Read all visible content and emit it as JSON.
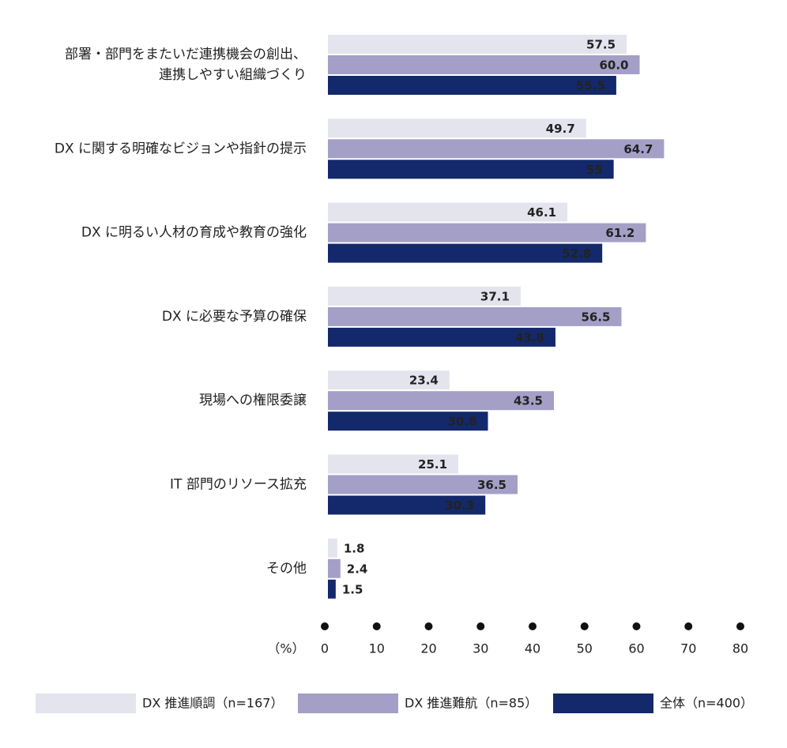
{
  "chart_data": {
    "type": "bar",
    "orientation": "horizontal",
    "categories": [
      [
        "部署・部門をまたいだ連携機会の創出、",
        "連携しやすい組織づくり"
      ],
      [
        "DX に関する明確なビジョンや指針の提示"
      ],
      [
        "DX に明るい人材の育成や教育の強化"
      ],
      [
        "DX に必要な予算の確保"
      ],
      [
        "現場への権限委譲"
      ],
      [
        "IT 部門のリソース拡充"
      ],
      [
        "その他"
      ]
    ],
    "series": [
      {
        "name": "DX 推進順調（n=167）",
        "color": "#e4e4ee",
        "label_color": "#111111",
        "values": [
          57.5,
          49.7,
          46.1,
          37.1,
          23.4,
          25.1,
          1.8
        ]
      },
      {
        "name": "DX 推進難航（n=85）",
        "color": "#a39fc6",
        "label_color": "#ffffff",
        "values": [
          60.0,
          64.7,
          61.2,
          56.5,
          43.5,
          36.5,
          2.4
        ],
        "value_labels": [
          "60.0",
          "64.7",
          "61.2",
          "56.5",
          "43.5",
          "36.5",
          "2.4"
        ]
      },
      {
        "name": "全体（n=400）",
        "color": "#14296b",
        "label_color": "#ffffff",
        "values": [
          55.5,
          55.0,
          52.8,
          43.8,
          30.8,
          30.3,
          1.5
        ]
      }
    ],
    "xlabel": "（%）",
    "xlim": [
      0,
      80
    ],
    "xticks": [
      0,
      10,
      20,
      30,
      40,
      50,
      60,
      70,
      80
    ]
  }
}
